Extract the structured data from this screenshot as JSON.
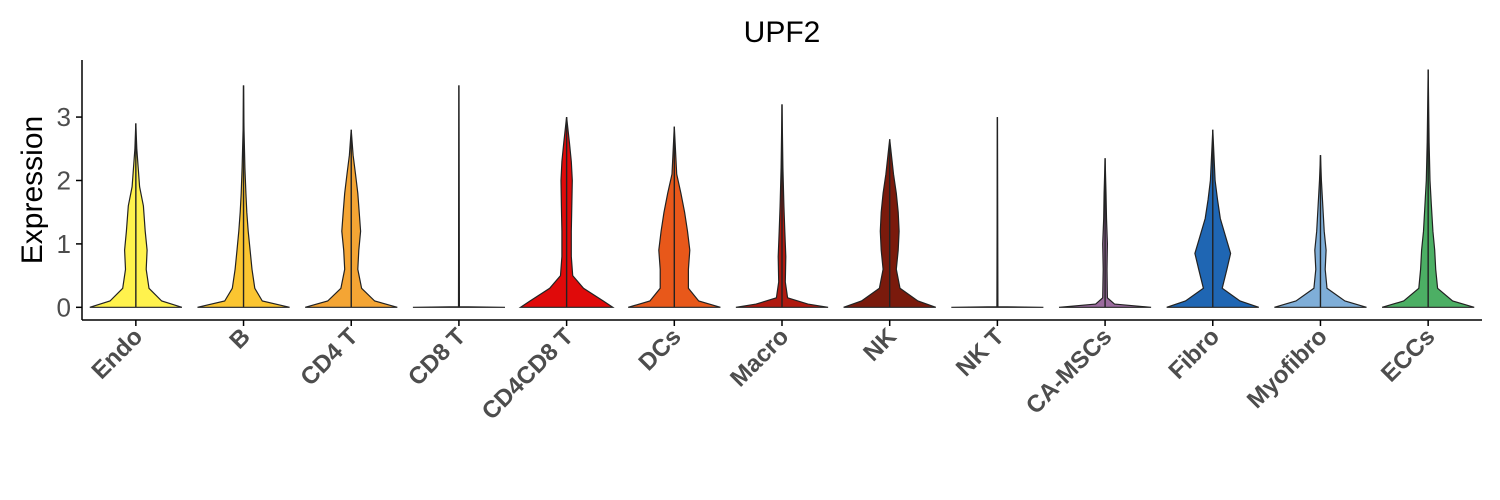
{
  "chart_data": {
    "type": "violin",
    "title": "UPF2",
    "xlabel": "",
    "ylabel": "Expression",
    "ylim": [
      -0.2,
      3.9
    ],
    "yticks": [
      0,
      1,
      2,
      3
    ],
    "grid": false,
    "legend": "none",
    "categories": [
      "Endo",
      "B",
      "CD4 T",
      "CD8 T",
      "CD4CD8 T",
      "DCs",
      "Macro",
      "NK",
      "NK T",
      "CA-MSCs",
      "Fibro",
      "Myofibro",
      "ECCs"
    ],
    "colors": [
      "#FFF24D",
      "#FBC531",
      "#F4A534",
      "#FF6A00",
      "#E00A0A",
      "#E8581A",
      "#B0190F",
      "#7A1A0C",
      "#888888",
      "#9B6B9E",
      "#1F66B3",
      "#7FAED8",
      "#4CAF64"
    ],
    "max_values": [
      2.9,
      3.5,
      2.8,
      3.5,
      3.0,
      2.85,
      3.2,
      2.65,
      3.0,
      2.35,
      2.8,
      2.4,
      3.75
    ],
    "densities": [
      [
        [
          0,
          0.98
        ],
        [
          0.1,
          0.55
        ],
        [
          0.3,
          0.28
        ],
        [
          0.6,
          0.22
        ],
        [
          0.9,
          0.24
        ],
        [
          1.2,
          0.2
        ],
        [
          1.6,
          0.16
        ],
        [
          1.9,
          0.08
        ],
        [
          2.2,
          0.05
        ],
        [
          2.5,
          0.02
        ],
        [
          2.9,
          0
        ]
      ],
      [
        [
          0,
          0.98
        ],
        [
          0.1,
          0.4
        ],
        [
          0.3,
          0.24
        ],
        [
          0.6,
          0.18
        ],
        [
          0.9,
          0.14
        ],
        [
          1.2,
          0.1
        ],
        [
          1.5,
          0.07
        ],
        [
          1.8,
          0.05
        ],
        [
          2.2,
          0.03
        ],
        [
          2.8,
          0.01
        ],
        [
          3.5,
          0
        ]
      ],
      [
        [
          0,
          0.98
        ],
        [
          0.1,
          0.5
        ],
        [
          0.3,
          0.22
        ],
        [
          0.6,
          0.14
        ],
        [
          0.9,
          0.16
        ],
        [
          1.2,
          0.2
        ],
        [
          1.5,
          0.17
        ],
        [
          1.8,
          0.14
        ],
        [
          2.1,
          0.09
        ],
        [
          2.4,
          0.04
        ],
        [
          2.8,
          0
        ]
      ],
      [
        [
          0,
          0.98
        ],
        [
          0.01,
          0.01
        ],
        [
          3.5,
          0
        ]
      ],
      [
        [
          0,
          0.98
        ],
        [
          0.1,
          0.78
        ],
        [
          0.3,
          0.36
        ],
        [
          0.5,
          0.13
        ],
        [
          0.8,
          0.1
        ],
        [
          1.2,
          0.1
        ],
        [
          1.6,
          0.11
        ],
        [
          2.0,
          0.12
        ],
        [
          2.3,
          0.1
        ],
        [
          2.6,
          0.06
        ],
        [
          3.0,
          0
        ]
      ],
      [
        [
          0,
          0.98
        ],
        [
          0.1,
          0.52
        ],
        [
          0.3,
          0.3
        ],
        [
          0.6,
          0.3
        ],
        [
          0.9,
          0.33
        ],
        [
          1.2,
          0.28
        ],
        [
          1.5,
          0.22
        ],
        [
          1.8,
          0.14
        ],
        [
          2.1,
          0.05
        ],
        [
          2.85,
          0
        ]
      ],
      [
        [
          0,
          0.98
        ],
        [
          0.05,
          0.55
        ],
        [
          0.15,
          0.12
        ],
        [
          0.4,
          0.07
        ],
        [
          0.8,
          0.08
        ],
        [
          1.2,
          0.06
        ],
        [
          1.6,
          0.04
        ],
        [
          2.2,
          0.02
        ],
        [
          3.2,
          0
        ]
      ],
      [
        [
          0,
          0.98
        ],
        [
          0.1,
          0.6
        ],
        [
          0.3,
          0.22
        ],
        [
          0.6,
          0.14
        ],
        [
          0.9,
          0.18
        ],
        [
          1.2,
          0.2
        ],
        [
          1.5,
          0.18
        ],
        [
          1.8,
          0.14
        ],
        [
          2.1,
          0.08
        ],
        [
          2.65,
          0
        ]
      ],
      [
        [
          0,
          0.98
        ],
        [
          0.01,
          0.01
        ],
        [
          3.0,
          0
        ]
      ],
      [
        [
          0,
          0.98
        ],
        [
          0.05,
          0.2
        ],
        [
          0.15,
          0.05
        ],
        [
          0.6,
          0.04
        ],
        [
          1.0,
          0.05
        ],
        [
          1.4,
          0.03
        ],
        [
          1.8,
          0.02
        ],
        [
          2.35,
          0
        ]
      ],
      [
        [
          0,
          0.98
        ],
        [
          0.1,
          0.58
        ],
        [
          0.3,
          0.2
        ],
        [
          0.6,
          0.3
        ],
        [
          0.85,
          0.38
        ],
        [
          1.1,
          0.28
        ],
        [
          1.4,
          0.16
        ],
        [
          1.7,
          0.1
        ],
        [
          2.0,
          0.05
        ],
        [
          2.8,
          0
        ]
      ],
      [
        [
          0,
          0.98
        ],
        [
          0.1,
          0.52
        ],
        [
          0.3,
          0.14
        ],
        [
          0.6,
          0.1
        ],
        [
          0.9,
          0.12
        ],
        [
          1.2,
          0.08
        ],
        [
          1.6,
          0.05
        ],
        [
          2.0,
          0.02
        ],
        [
          2.4,
          0
        ]
      ],
      [
        [
          0,
          0.98
        ],
        [
          0.1,
          0.52
        ],
        [
          0.3,
          0.2
        ],
        [
          0.6,
          0.16
        ],
        [
          0.9,
          0.14
        ],
        [
          1.2,
          0.1
        ],
        [
          1.6,
          0.07
        ],
        [
          2.0,
          0.04
        ],
        [
          2.6,
          0.02
        ],
        [
          3.75,
          0
        ]
      ]
    ]
  }
}
